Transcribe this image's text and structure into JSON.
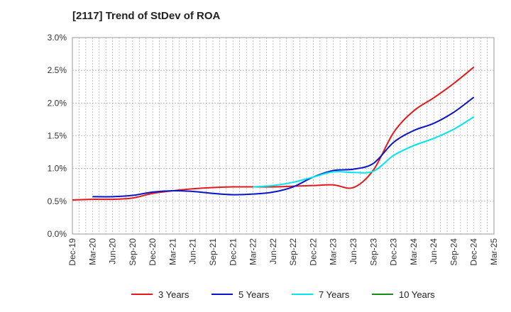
{
  "chart_data": {
    "type": "line",
    "title": "[2117]  Trend of StDev of ROA",
    "xlabel": "",
    "ylabel": "",
    "x_ticks": [
      "Dec-19",
      "Mar-20",
      "Jun-20",
      "Sep-20",
      "Dec-20",
      "Mar-21",
      "Jun-21",
      "Sep-21",
      "Dec-21",
      "Mar-22",
      "Jun-22",
      "Sep-22",
      "Dec-22",
      "Mar-23",
      "Jun-23",
      "Sep-23",
      "Dec-23",
      "Mar-24",
      "Jun-24",
      "Sep-24",
      "Dec-24",
      "Mar-25"
    ],
    "y_ticks": [
      "0.0%",
      "0.5%",
      "1.0%",
      "1.5%",
      "2.0%",
      "2.5%",
      "3.0%"
    ],
    "ylim": [
      0,
      3.0
    ],
    "y_unit": "%",
    "grid": true,
    "legend_position": "bottom",
    "series": [
      {
        "name": "3 Years",
        "color": "#e31a1c",
        "x": [
          "Dec-19",
          "Mar-20",
          "Jun-20",
          "Sep-20",
          "Dec-20",
          "Mar-21",
          "Jun-21",
          "Sep-21",
          "Dec-21",
          "Mar-22",
          "Jun-22",
          "Sep-22",
          "Dec-22",
          "Mar-23",
          "Jun-23",
          "Sep-23",
          "Dec-23",
          "Mar-24",
          "Jun-24",
          "Sep-24",
          "Dec-24"
        ],
        "values": [
          0.52,
          0.53,
          0.53,
          0.55,
          0.62,
          0.66,
          0.69,
          0.71,
          0.72,
          0.72,
          0.72,
          0.73,
          0.74,
          0.75,
          0.71,
          0.98,
          1.55,
          1.88,
          2.08,
          2.3,
          2.55
        ]
      },
      {
        "name": "5 Years",
        "color": "#0a14c8",
        "x": [
          "Mar-20",
          "Jun-20",
          "Sep-20",
          "Dec-20",
          "Mar-21",
          "Jun-21",
          "Sep-21",
          "Dec-21",
          "Mar-22",
          "Jun-22",
          "Sep-22",
          "Dec-22",
          "Mar-23",
          "Jun-23",
          "Sep-23",
          "Dec-23",
          "Mar-24",
          "Jun-24",
          "Sep-24",
          "Dec-24"
        ],
        "values": [
          0.57,
          0.57,
          0.59,
          0.64,
          0.66,
          0.65,
          0.62,
          0.6,
          0.61,
          0.64,
          0.72,
          0.87,
          0.97,
          0.99,
          1.08,
          1.4,
          1.58,
          1.69,
          1.86,
          2.09
        ]
      },
      {
        "name": "7 Years",
        "color": "#00e5ee",
        "x": [
          "Mar-22",
          "Jun-22",
          "Sep-22",
          "Dec-22",
          "Mar-23",
          "Jun-23",
          "Sep-23",
          "Dec-23",
          "Mar-24",
          "Jun-24",
          "Sep-24",
          "Dec-24"
        ],
        "values": [
          0.72,
          0.74,
          0.79,
          0.87,
          0.95,
          0.94,
          0.96,
          1.2,
          1.35,
          1.46,
          1.6,
          1.79
        ]
      },
      {
        "name": "10 Years",
        "color": "#1a8a1a",
        "x": [],
        "values": []
      }
    ]
  }
}
